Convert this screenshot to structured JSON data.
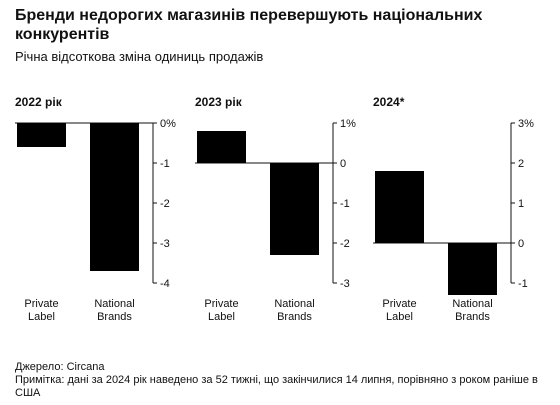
{
  "title": "Бренди недорогих магазинів перевершують національних конкурентів",
  "subtitle": "Річна відсоткова зміна одиниць продажів",
  "footer": {
    "source": "Джерело: Circana",
    "note": "Примітка: дані за 2024 рік наведено за 52 тижні, що закінчилися 14 липня, порівняно з роком раніше в США"
  },
  "colors": {
    "bar": "#000000",
    "axis": "#111111",
    "background": "#ffffff"
  },
  "chart_data": [
    {
      "type": "bar",
      "title": "2022 рік",
      "categories": [
        "Private Label",
        "National Brands"
      ],
      "values": [
        -0.6,
        -3.7
      ],
      "ylim": [
        -4,
        0
      ],
      "yticks": [
        0,
        -1,
        -2,
        -3,
        -4
      ],
      "ytick_labels": [
        "0%",
        "-1",
        "-2",
        "-3",
        "-4"
      ]
    },
    {
      "type": "bar",
      "title": "2023 рік",
      "categories": [
        "Private Label",
        "National Brands"
      ],
      "values": [
        0.8,
        -2.3
      ],
      "ylim": [
        -3,
        1
      ],
      "yticks": [
        1,
        0,
        -1,
        -2,
        -3
      ],
      "ytick_labels": [
        "1%",
        "0",
        "-1",
        "-2",
        "-3"
      ]
    },
    {
      "type": "bar",
      "title": "2024*",
      "categories": [
        "Private Label",
        "National Brands"
      ],
      "values": [
        1.8,
        -1.3
      ],
      "ylim": [
        -1,
        3
      ],
      "yticks": [
        3,
        2,
        1,
        0,
        -1
      ],
      "ytick_labels": [
        "3%",
        "2",
        "1",
        "0",
        "-1"
      ]
    }
  ]
}
